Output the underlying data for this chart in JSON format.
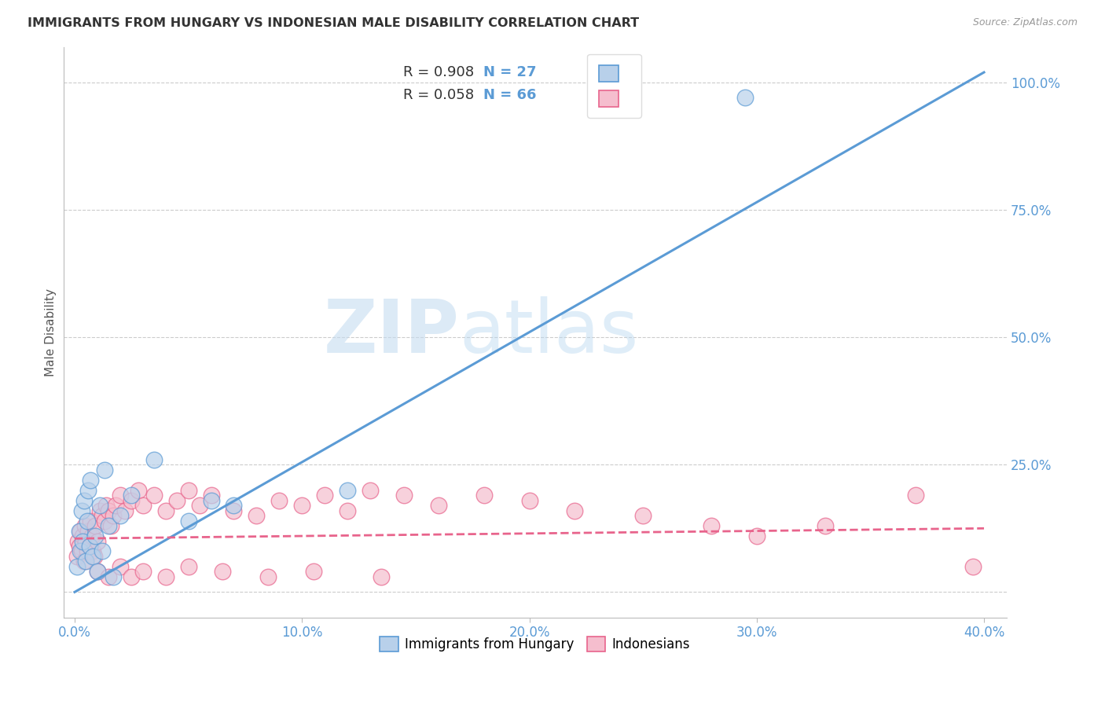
{
  "title": "IMMIGRANTS FROM HUNGARY VS INDONESIAN MALE DISABILITY CORRELATION CHART",
  "source": "Source: ZipAtlas.com",
  "ylabel": "Male Disability",
  "y_tick_labels": [
    "",
    "25.0%",
    "50.0%",
    "75.0%",
    "100.0%"
  ],
  "y_tick_values": [
    0,
    25,
    50,
    75,
    100
  ],
  "x_tick_values": [
    0,
    10,
    20,
    30,
    40
  ],
  "xlim": [
    -0.5,
    41
  ],
  "ylim": [
    -5,
    107
  ],
  "legend_r_entries": [
    {
      "R_text": "R = 0.908",
      "N_text": "N = 27"
    },
    {
      "R_text": "R = 0.058",
      "N_text": "N = 66"
    }
  ],
  "legend_bottom": [
    "Immigrants from Hungary",
    "Indonesians"
  ],
  "blue_color": "#5b9bd5",
  "pink_color": "#e8648c",
  "blue_fill": "#b8d0ea",
  "pink_fill": "#f5bece",
  "watermark_zip": "ZIP",
  "watermark_atlas": "atlas",
  "blue_scatter_x": [
    0.1,
    0.2,
    0.25,
    0.3,
    0.35,
    0.4,
    0.5,
    0.55,
    0.6,
    0.65,
    0.7,
    0.8,
    0.9,
    1.0,
    1.1,
    1.2,
    1.3,
    1.5,
    1.7,
    2.0,
    2.5,
    3.5,
    5.0,
    6.0,
    7.0,
    12.0,
    29.5
  ],
  "blue_scatter_y": [
    5,
    12,
    8,
    16,
    10,
    18,
    6,
    14,
    20,
    9,
    22,
    7,
    11,
    4,
    17,
    8,
    24,
    13,
    3,
    15,
    19,
    26,
    14,
    18,
    17,
    20,
    97
  ],
  "pink_scatter_x": [
    0.1,
    0.15,
    0.2,
    0.25,
    0.3,
    0.35,
    0.4,
    0.45,
    0.5,
    0.55,
    0.6,
    0.65,
    0.7,
    0.75,
    0.8,
    0.85,
    0.9,
    1.0,
    1.1,
    1.2,
    1.3,
    1.4,
    1.5,
    1.6,
    1.7,
    1.8,
    2.0,
    2.2,
    2.5,
    2.8,
    3.0,
    3.5,
    4.0,
    4.5,
    5.0,
    5.5,
    6.0,
    7.0,
    8.0,
    9.0,
    10.0,
    11.0,
    12.0,
    13.0,
    14.5,
    16.0,
    18.0,
    20.0,
    22.0,
    25.0,
    28.0,
    30.0,
    33.0,
    37.0,
    1.0,
    1.5,
    2.0,
    2.5,
    3.0,
    4.0,
    5.0,
    6.5,
    8.5,
    10.5,
    13.5,
    39.5
  ],
  "pink_scatter_y": [
    7,
    10,
    9,
    12,
    8,
    11,
    6,
    13,
    10,
    8,
    12,
    9,
    14,
    11,
    8,
    7,
    13,
    10,
    16,
    15,
    14,
    17,
    16,
    13,
    15,
    17,
    19,
    16,
    18,
    20,
    17,
    19,
    16,
    18,
    20,
    17,
    19,
    16,
    15,
    18,
    17,
    19,
    16,
    20,
    19,
    17,
    19,
    18,
    16,
    15,
    13,
    11,
    13,
    19,
    4,
    3,
    5,
    3,
    4,
    3,
    5,
    4,
    3,
    4,
    3,
    5
  ],
  "blue_line_x": [
    0,
    40
  ],
  "blue_line_y": [
    0,
    102
  ],
  "pink_line_x": [
    0,
    40
  ],
  "pink_line_y": [
    10.5,
    12.5
  ],
  "grid_y_values": [
    0,
    25,
    50,
    75,
    100
  ],
  "grid_color": "#cccccc",
  "background_color": "#ffffff",
  "text_color_blue": "#5b9bd5",
  "text_color_dark": "#333333",
  "text_color_source": "#999999"
}
